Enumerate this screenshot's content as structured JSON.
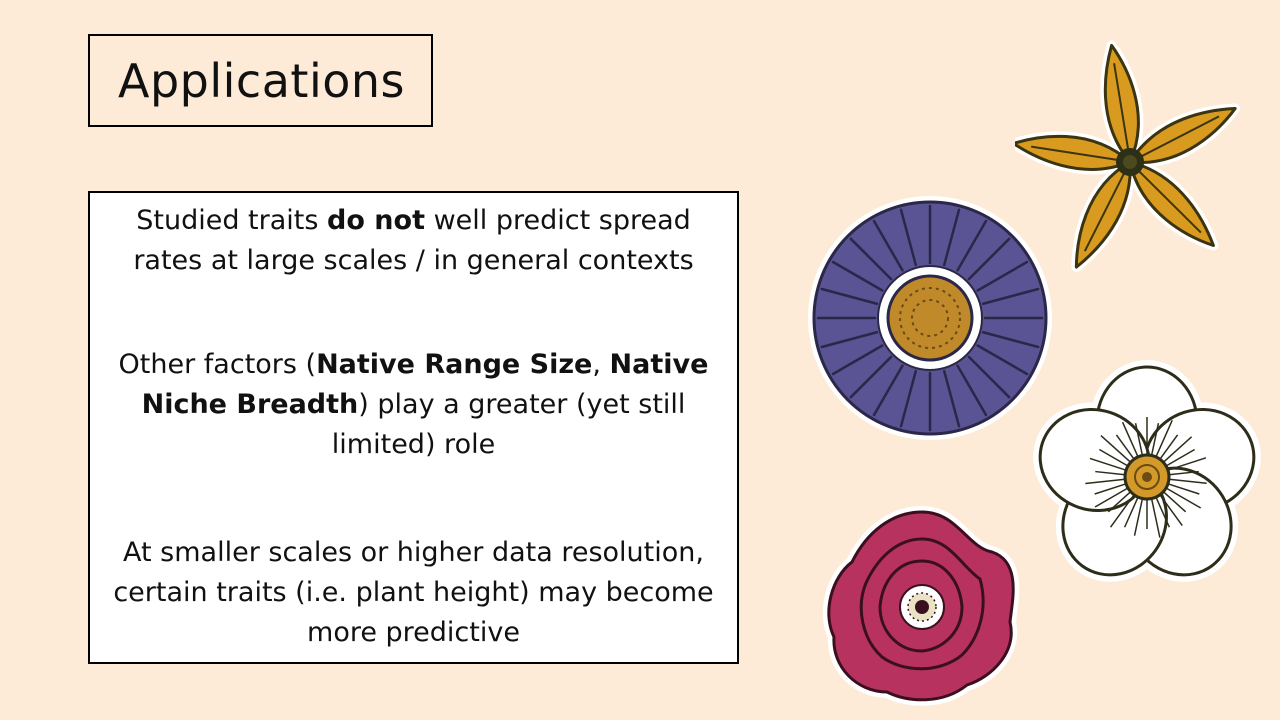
{
  "slide": {
    "title": "Applications",
    "background_color": "#fdebd8",
    "paragraphs": [
      {
        "parts": [
          {
            "text": "Studied traits ",
            "bold": false
          },
          {
            "text": "do not",
            "bold": true
          },
          {
            "text": " well predict spread rates at large scales / in general contexts",
            "bold": false
          }
        ]
      },
      {
        "parts": [
          {
            "text": "Other factors (",
            "bold": false
          },
          {
            "text": "Native Range Size",
            "bold": true
          },
          {
            "text": ", ",
            "bold": false
          },
          {
            "text": "Native Niche Breadth",
            "bold": true
          },
          {
            "text": ") play a greater (yet still limited) role",
            "bold": false
          }
        ]
      },
      {
        "parts": [
          {
            "text": "At smaller scales or higher data resolution, certain traits (i.e. plant height) may become more predictive",
            "bold": false
          }
        ]
      }
    ],
    "illustrations": [
      {
        "name": "yellow-star-flower-icon",
        "color": "#d99a20"
      },
      {
        "name": "purple-aster-flower-icon",
        "color": "#5a5394"
      },
      {
        "name": "white-poppy-flower-icon",
        "color": "#ffffff"
      },
      {
        "name": "magenta-rose-flower-icon",
        "color": "#b8325f"
      }
    ]
  }
}
